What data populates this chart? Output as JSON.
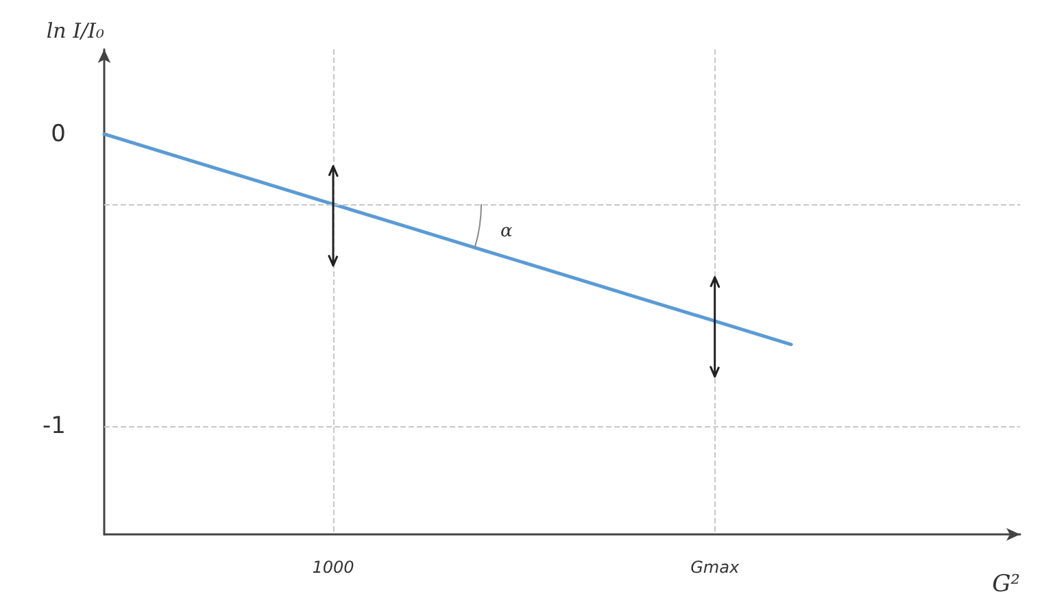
{
  "chart_data": {
    "type": "line",
    "xlabel": "G²",
    "ylabel": "ln I/I₀",
    "categories": [
      null,
      null,
      null,
      "1000",
      null,
      null,
      null,
      null,
      "Gmax",
      null,
      null,
      null,
      null
    ],
    "series": [
      {
        "color": "#5b9bd5",
        "values": [
          0,
          -0.08,
          -0.16,
          -0.24,
          -0.32,
          -0.4,
          -0.48,
          -0.56,
          -0.64,
          -0.72,
          null,
          null,
          null
        ],
        "errors": [
          null,
          null,
          null,
          [
            -0.45,
            -0.11
          ],
          null,
          null,
          null,
          null,
          [
            -0.83,
            -0.49
          ],
          null,
          null,
          null,
          null
        ]
      }
    ],
    "ylim": [
      -1.37,
      0.29
    ],
    "yticks": [
      -1,
      0
    ],
    "grid": "x",
    "marker": "none",
    "line_style": "solid",
    "ref_lines": [
      {
        "axis": "y",
        "value": -0.24,
        "label": null
      },
      {
        "axis": "y",
        "value": -1,
        "label": null
      }
    ],
    "annotations": [
      "α"
    ]
  }
}
